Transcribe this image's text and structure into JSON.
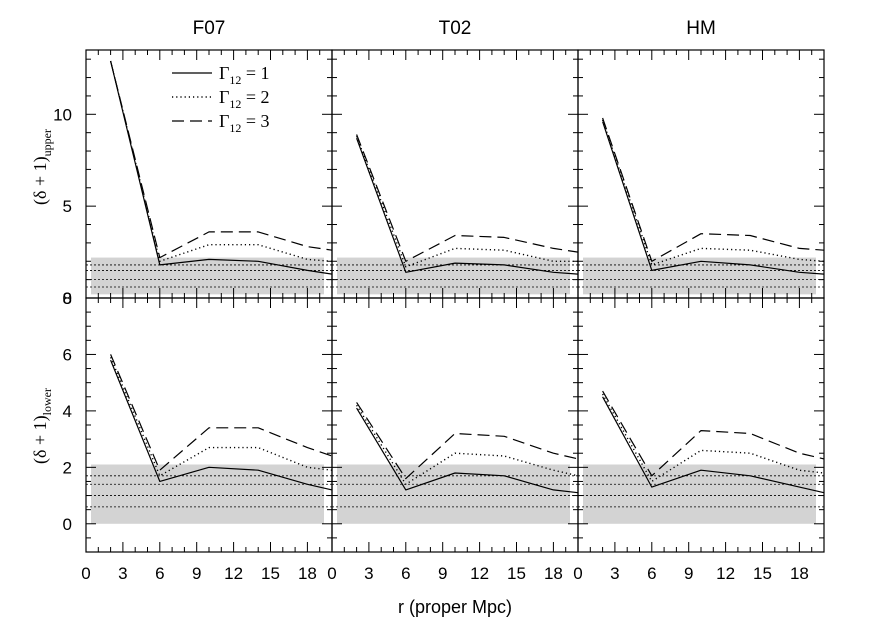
{
  "figure": {
    "xlabel": "r (proper Mpc)",
    "ylabel_upper_main": "(δ + 1)",
    "ylabel_upper_sub": "upper",
    "ylabel_lower_main": "(δ + 1)",
    "ylabel_lower_sub": "lower"
  },
  "legend": {
    "entries": [
      {
        "main": "Γ",
        "sub": "12",
        "rest": " = 1",
        "style": "solid"
      },
      {
        "main": "Γ",
        "sub": "12",
        "rest": " = 2",
        "style": "dotted"
      },
      {
        "main": "Γ",
        "sub": "12",
        "rest": " = 3",
        "style": "dashed"
      }
    ]
  },
  "colors": {
    "band": "#d3d3d3",
    "line": "#000000"
  },
  "chart_data": [
    {
      "type": "line",
      "panel": "F07 upper",
      "title": "F07",
      "ylabel": "(δ+1)_upper",
      "xlim": [
        0,
        20
      ],
      "ylim": [
        0,
        13.5
      ],
      "x_ticks": [
        "0",
        "3",
        "6",
        "9",
        "12",
        "15",
        "18"
      ],
      "y_ticks": [
        "0",
        "5",
        "10"
      ],
      "shaded_band": [
        0.2,
        2.2
      ],
      "dotted_levels": [
        0.6,
        1.0,
        1.5,
        1.8
      ],
      "x": [
        2,
        6,
        10,
        14,
        18,
        20
      ],
      "series": [
        {
          "name": "Γ12 = 1",
          "values": [
            12.9,
            1.8,
            2.1,
            2.0,
            1.5,
            1.3
          ]
        },
        {
          "name": "Γ12 = 2",
          "values": [
            12.9,
            2.0,
            2.9,
            2.9,
            2.1,
            2.0
          ]
        },
        {
          "name": "Γ12 = 3",
          "values": [
            12.9,
            2.2,
            3.6,
            3.6,
            2.8,
            2.6
          ]
        }
      ]
    },
    {
      "type": "line",
      "panel": "T02 upper",
      "title": "T02",
      "xlim": [
        0,
        20
      ],
      "ylim": [
        0,
        13.5
      ],
      "x_ticks": [
        "0",
        "3",
        "6",
        "9",
        "12",
        "15",
        "18"
      ],
      "y_ticks": [],
      "shaded_band": [
        0.2,
        2.2
      ],
      "dotted_levels": [
        0.6,
        1.0,
        1.5,
        1.8
      ],
      "x": [
        2,
        6,
        10,
        14,
        18,
        20
      ],
      "series": [
        {
          "name": "Γ12 = 1",
          "values": [
            8.7,
            1.4,
            1.9,
            1.8,
            1.4,
            1.3
          ]
        },
        {
          "name": "Γ12 = 2",
          "values": [
            8.8,
            1.7,
            2.7,
            2.6,
            2.0,
            2.0
          ]
        },
        {
          "name": "Γ12 = 3",
          "values": [
            8.9,
            2.0,
            3.4,
            3.3,
            2.7,
            2.5
          ]
        }
      ]
    },
    {
      "type": "line",
      "panel": "HM upper",
      "title": "HM",
      "xlim": [
        0,
        20
      ],
      "ylim": [
        0,
        13.5
      ],
      "x_ticks": [
        "0",
        "3",
        "6",
        "9",
        "12",
        "15",
        "18"
      ],
      "y_ticks": [],
      "shaded_band": [
        0.2,
        2.2
      ],
      "dotted_levels": [
        0.6,
        1.0,
        1.5,
        1.8
      ],
      "x": [
        2,
        6,
        10,
        14,
        18,
        20
      ],
      "series": [
        {
          "name": "Γ12 = 1",
          "values": [
            9.6,
            1.5,
            2.0,
            1.8,
            1.4,
            1.3
          ]
        },
        {
          "name": "Γ12 = 2",
          "values": [
            9.7,
            1.8,
            2.7,
            2.6,
            2.1,
            2.0
          ]
        },
        {
          "name": "Γ12 = 3",
          "values": [
            9.8,
            2.0,
            3.5,
            3.4,
            2.7,
            2.6
          ]
        }
      ]
    },
    {
      "type": "line",
      "panel": "F07 lower",
      "ylabel": "(δ+1)_lower",
      "xlabel": "r (proper Mpc)",
      "xlim": [
        0,
        20
      ],
      "ylim": [
        -1,
        8
      ],
      "x_ticks": [
        "0",
        "3",
        "6",
        "9",
        "12",
        "15",
        "18"
      ],
      "y_ticks": [
        "0",
        "2",
        "4",
        "6",
        "8"
      ],
      "shaded_band": [
        0.0,
        2.1
      ],
      "dotted_levels": [
        0.6,
        1.0,
        1.4,
        1.7
      ],
      "x": [
        2,
        6,
        10,
        14,
        18,
        20
      ],
      "series": [
        {
          "name": "Γ12 = 1",
          "values": [
            5.8,
            1.5,
            2.0,
            1.9,
            1.4,
            1.2
          ]
        },
        {
          "name": "Γ12 = 2",
          "values": [
            5.9,
            1.7,
            2.7,
            2.7,
            2.0,
            1.9
          ]
        },
        {
          "name": "Γ12 = 3",
          "values": [
            6.0,
            1.9,
            3.4,
            3.4,
            2.7,
            2.4
          ]
        }
      ]
    },
    {
      "type": "line",
      "panel": "T02 lower",
      "xlabel": "r (proper Mpc)",
      "xlim": [
        0,
        20
      ],
      "ylim": [
        -1,
        8
      ],
      "x_ticks": [
        "0",
        "3",
        "6",
        "9",
        "12",
        "15",
        "18"
      ],
      "y_ticks": [],
      "shaded_band": [
        0.0,
        2.1
      ],
      "dotted_levels": [
        0.6,
        1.0,
        1.4,
        1.7
      ],
      "x": [
        2,
        6,
        10,
        14,
        18,
        20
      ],
      "series": [
        {
          "name": "Γ12 = 1",
          "values": [
            4.1,
            1.2,
            1.8,
            1.7,
            1.2,
            1.1
          ]
        },
        {
          "name": "Γ12 = 2",
          "values": [
            4.2,
            1.4,
            2.5,
            2.4,
            1.9,
            1.7
          ]
        },
        {
          "name": "Γ12 = 3",
          "values": [
            4.3,
            1.6,
            3.2,
            3.1,
            2.5,
            2.3
          ]
        }
      ]
    },
    {
      "type": "line",
      "panel": "HM lower",
      "xlabel": "r (proper Mpc)",
      "xlim": [
        0,
        20
      ],
      "ylim": [
        -1,
        8
      ],
      "x_ticks": [
        "0",
        "3",
        "6",
        "9",
        "12",
        "15",
        "18"
      ],
      "y_ticks": [],
      "shaded_band": [
        0.0,
        2.1
      ],
      "dotted_levels": [
        0.6,
        1.0,
        1.4,
        1.7
      ],
      "x": [
        2,
        6,
        10,
        14,
        18,
        20
      ],
      "series": [
        {
          "name": "Γ12 = 1",
          "values": [
            4.5,
            1.3,
            1.9,
            1.7,
            1.3,
            1.1
          ]
        },
        {
          "name": "Γ12 = 2",
          "values": [
            4.6,
            1.5,
            2.6,
            2.5,
            1.9,
            1.8
          ]
        },
        {
          "name": "Γ12 = 3",
          "values": [
            4.7,
            1.7,
            3.3,
            3.2,
            2.5,
            2.3
          ]
        }
      ]
    }
  ]
}
